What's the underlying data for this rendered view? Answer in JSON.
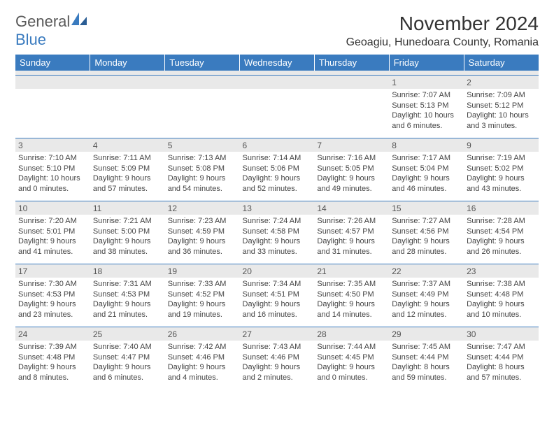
{
  "brand": {
    "name_a": "General",
    "name_b": "Blue"
  },
  "title": "November 2024",
  "location": "Geoagiu, Hunedoara County, Romania",
  "colors": {
    "header_bg": "#3a7bbf",
    "header_fg": "#ffffff",
    "daynum_bg": "#e9e9e9",
    "cell_border": "#3a7bbf",
    "text": "#444444",
    "title": "#333333"
  },
  "weekdays": [
    "Sunday",
    "Monday",
    "Tuesday",
    "Wednesday",
    "Thursday",
    "Friday",
    "Saturday"
  ],
  "weeks": [
    [
      null,
      null,
      null,
      null,
      null,
      {
        "d": "1",
        "sr": "Sunrise: 7:07 AM",
        "ss": "Sunset: 5:13 PM",
        "dl": "Daylight: 10 hours and 6 minutes."
      },
      {
        "d": "2",
        "sr": "Sunrise: 7:09 AM",
        "ss": "Sunset: 5:12 PM",
        "dl": "Daylight: 10 hours and 3 minutes."
      }
    ],
    [
      {
        "d": "3",
        "sr": "Sunrise: 7:10 AM",
        "ss": "Sunset: 5:10 PM",
        "dl": "Daylight: 10 hours and 0 minutes."
      },
      {
        "d": "4",
        "sr": "Sunrise: 7:11 AM",
        "ss": "Sunset: 5:09 PM",
        "dl": "Daylight: 9 hours and 57 minutes."
      },
      {
        "d": "5",
        "sr": "Sunrise: 7:13 AM",
        "ss": "Sunset: 5:08 PM",
        "dl": "Daylight: 9 hours and 54 minutes."
      },
      {
        "d": "6",
        "sr": "Sunrise: 7:14 AM",
        "ss": "Sunset: 5:06 PM",
        "dl": "Daylight: 9 hours and 52 minutes."
      },
      {
        "d": "7",
        "sr": "Sunrise: 7:16 AM",
        "ss": "Sunset: 5:05 PM",
        "dl": "Daylight: 9 hours and 49 minutes."
      },
      {
        "d": "8",
        "sr": "Sunrise: 7:17 AM",
        "ss": "Sunset: 5:04 PM",
        "dl": "Daylight: 9 hours and 46 minutes."
      },
      {
        "d": "9",
        "sr": "Sunrise: 7:19 AM",
        "ss": "Sunset: 5:02 PM",
        "dl": "Daylight: 9 hours and 43 minutes."
      }
    ],
    [
      {
        "d": "10",
        "sr": "Sunrise: 7:20 AM",
        "ss": "Sunset: 5:01 PM",
        "dl": "Daylight: 9 hours and 41 minutes."
      },
      {
        "d": "11",
        "sr": "Sunrise: 7:21 AM",
        "ss": "Sunset: 5:00 PM",
        "dl": "Daylight: 9 hours and 38 minutes."
      },
      {
        "d": "12",
        "sr": "Sunrise: 7:23 AM",
        "ss": "Sunset: 4:59 PM",
        "dl": "Daylight: 9 hours and 36 minutes."
      },
      {
        "d": "13",
        "sr": "Sunrise: 7:24 AM",
        "ss": "Sunset: 4:58 PM",
        "dl": "Daylight: 9 hours and 33 minutes."
      },
      {
        "d": "14",
        "sr": "Sunrise: 7:26 AM",
        "ss": "Sunset: 4:57 PM",
        "dl": "Daylight: 9 hours and 31 minutes."
      },
      {
        "d": "15",
        "sr": "Sunrise: 7:27 AM",
        "ss": "Sunset: 4:56 PM",
        "dl": "Daylight: 9 hours and 28 minutes."
      },
      {
        "d": "16",
        "sr": "Sunrise: 7:28 AM",
        "ss": "Sunset: 4:54 PM",
        "dl": "Daylight: 9 hours and 26 minutes."
      }
    ],
    [
      {
        "d": "17",
        "sr": "Sunrise: 7:30 AM",
        "ss": "Sunset: 4:53 PM",
        "dl": "Daylight: 9 hours and 23 minutes."
      },
      {
        "d": "18",
        "sr": "Sunrise: 7:31 AM",
        "ss": "Sunset: 4:53 PM",
        "dl": "Daylight: 9 hours and 21 minutes."
      },
      {
        "d": "19",
        "sr": "Sunrise: 7:33 AM",
        "ss": "Sunset: 4:52 PM",
        "dl": "Daylight: 9 hours and 19 minutes."
      },
      {
        "d": "20",
        "sr": "Sunrise: 7:34 AM",
        "ss": "Sunset: 4:51 PM",
        "dl": "Daylight: 9 hours and 16 minutes."
      },
      {
        "d": "21",
        "sr": "Sunrise: 7:35 AM",
        "ss": "Sunset: 4:50 PM",
        "dl": "Daylight: 9 hours and 14 minutes."
      },
      {
        "d": "22",
        "sr": "Sunrise: 7:37 AM",
        "ss": "Sunset: 4:49 PM",
        "dl": "Daylight: 9 hours and 12 minutes."
      },
      {
        "d": "23",
        "sr": "Sunrise: 7:38 AM",
        "ss": "Sunset: 4:48 PM",
        "dl": "Daylight: 9 hours and 10 minutes."
      }
    ],
    [
      {
        "d": "24",
        "sr": "Sunrise: 7:39 AM",
        "ss": "Sunset: 4:48 PM",
        "dl": "Daylight: 9 hours and 8 minutes."
      },
      {
        "d": "25",
        "sr": "Sunrise: 7:40 AM",
        "ss": "Sunset: 4:47 PM",
        "dl": "Daylight: 9 hours and 6 minutes."
      },
      {
        "d": "26",
        "sr": "Sunrise: 7:42 AM",
        "ss": "Sunset: 4:46 PM",
        "dl": "Daylight: 9 hours and 4 minutes."
      },
      {
        "d": "27",
        "sr": "Sunrise: 7:43 AM",
        "ss": "Sunset: 4:46 PM",
        "dl": "Daylight: 9 hours and 2 minutes."
      },
      {
        "d": "28",
        "sr": "Sunrise: 7:44 AM",
        "ss": "Sunset: 4:45 PM",
        "dl": "Daylight: 9 hours and 0 minutes."
      },
      {
        "d": "29",
        "sr": "Sunrise: 7:45 AM",
        "ss": "Sunset: 4:44 PM",
        "dl": "Daylight: 8 hours and 59 minutes."
      },
      {
        "d": "30",
        "sr": "Sunrise: 7:47 AM",
        "ss": "Sunset: 4:44 PM",
        "dl": "Daylight: 8 hours and 57 minutes."
      }
    ]
  ]
}
